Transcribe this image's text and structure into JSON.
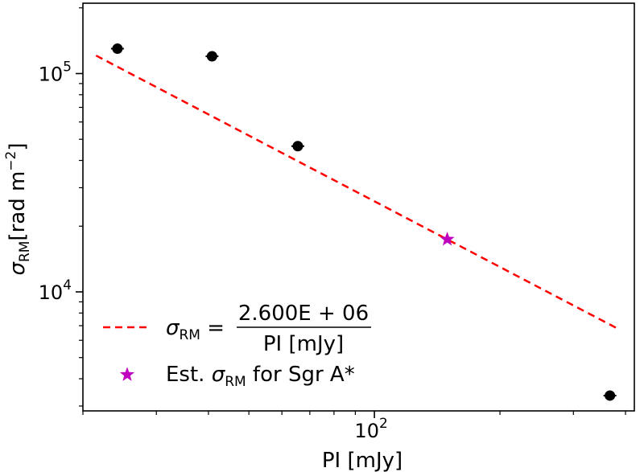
{
  "chart_data": {
    "type": "scatter",
    "xscale": "log",
    "yscale": "log",
    "xlim": [
      20,
      420
    ],
    "ylim": [
      2850,
      210000
    ],
    "xlabel": "PI [mJy]",
    "ylabel_symbol": "σ",
    "ylabel_sub": "RM",
    "ylabel_units": "[rad m",
    "ylabel_exp": "−2",
    "ylabel_close": "]",
    "x_ticks": [
      {
        "value": 100,
        "base": "10",
        "exp": "2"
      }
    ],
    "y_ticks": [
      {
        "value": 10000,
        "base": "10",
        "exp": "4"
      },
      {
        "value": 100000,
        "base": "10",
        "exp": "5"
      }
    ],
    "points": [
      {
        "x": 24.2,
        "y": 130000
      },
      {
        "x": 40.8,
        "y": 120000
      },
      {
        "x": 65.5,
        "y": 46500
      },
      {
        "x": 367,
        "y": 3350
      }
    ],
    "fit_line": {
      "x_start": 21.5,
      "x_end": 385,
      "coefficient": 2600000,
      "color": "#ff0000",
      "label_lhs_symbol": "σ",
      "label_lhs_sub": "RM",
      "label_numerator": "2.600E + 06",
      "label_denominator": "PI [mJy]"
    },
    "estimate": {
      "x": 149.5,
      "y": 17400,
      "color": "#bf00bf",
      "label_prefix": "Est. ",
      "label_symbol": "σ",
      "label_sub": "RM",
      "label_suffix": " for Sgr A*"
    },
    "legend_position": "lower-left",
    "grid": false
  }
}
